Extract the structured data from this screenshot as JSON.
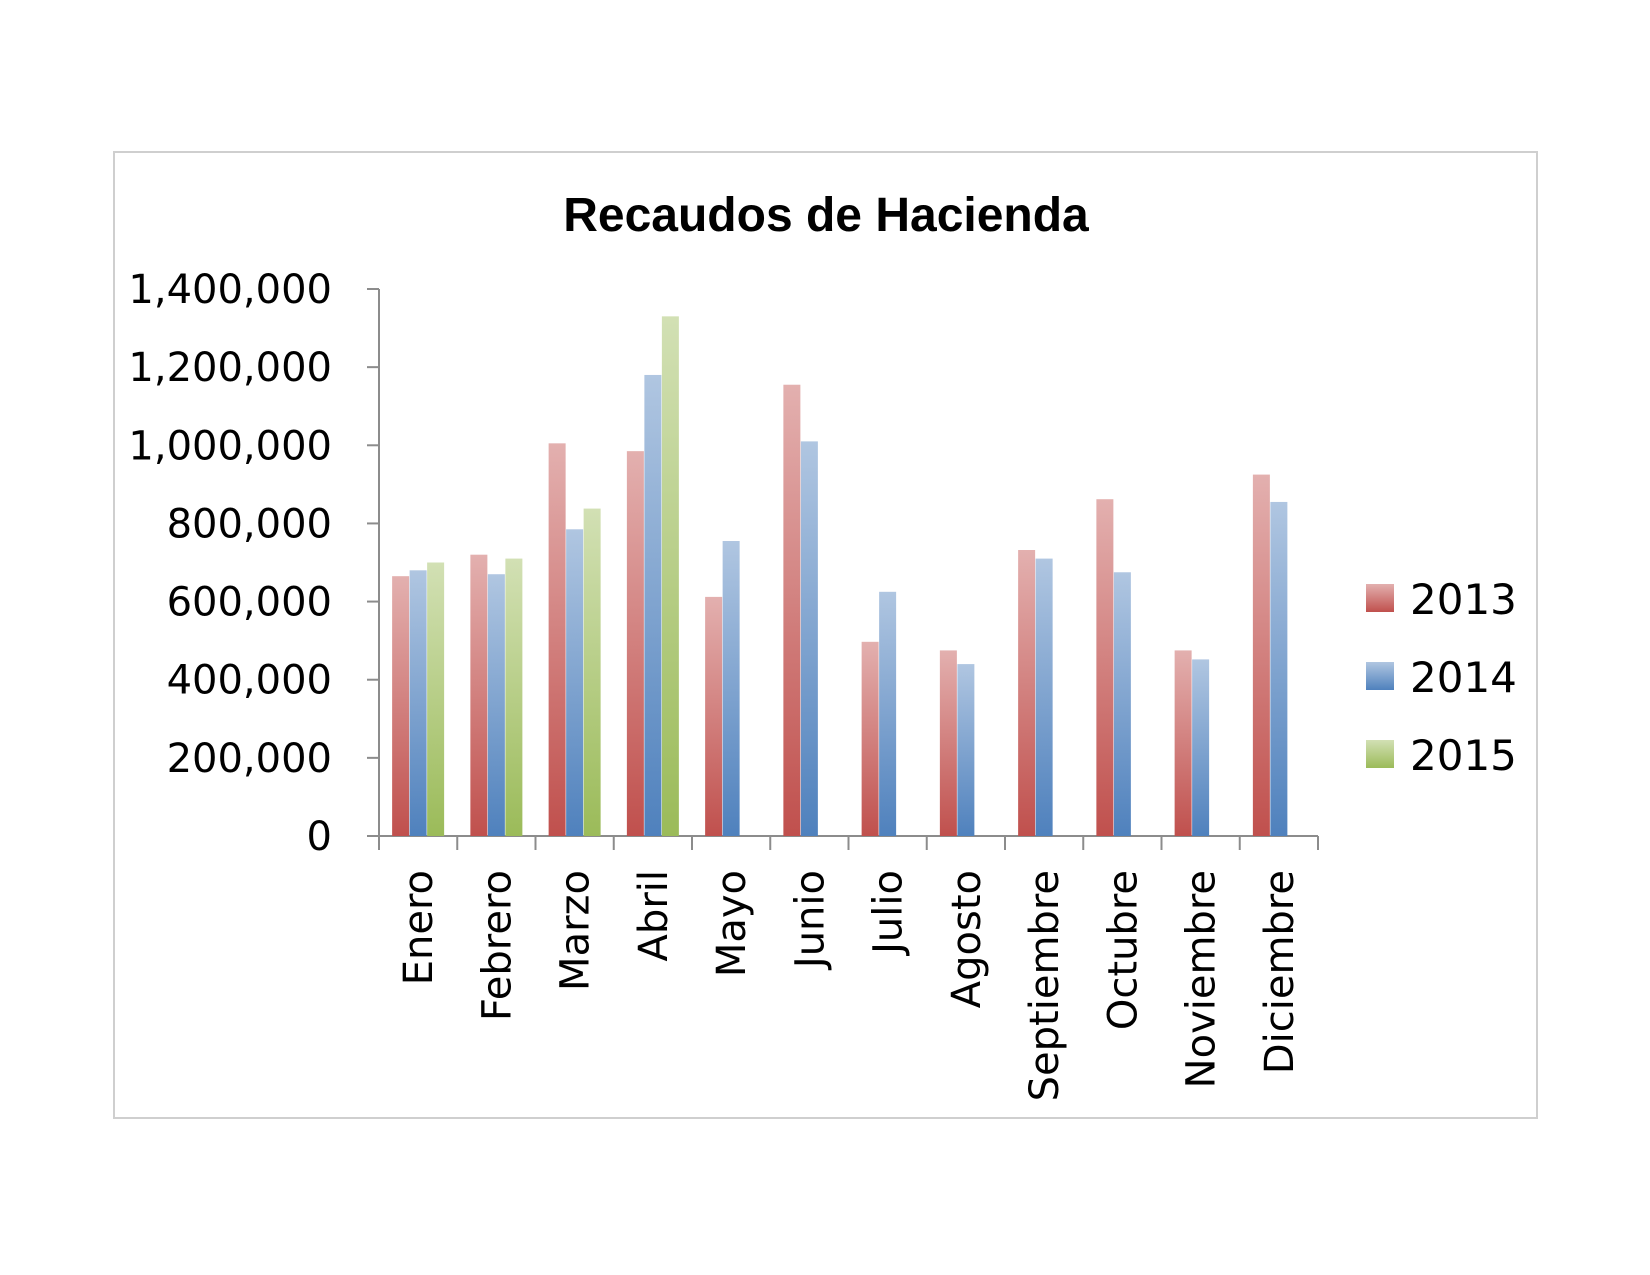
{
  "chart_data": {
    "type": "bar",
    "title": "Recaudos de Hacienda",
    "categories": [
      "Enero",
      "Febrero",
      "Marzo",
      "Abril",
      "Mayo",
      "Junio",
      "Julio",
      "Agosto",
      "Septiembre",
      "Octubre",
      "Noviembre",
      "Diciembre"
    ],
    "series": [
      {
        "name": "2013",
        "color": "#c0504d",
        "values": [
          665000,
          720000,
          1005000,
          985000,
          612000,
          1155000,
          497000,
          475000,
          732000,
          862000,
          475000,
          925000
        ]
      },
      {
        "name": "2014",
        "color": "#4f81bd",
        "values": [
          680000,
          670000,
          785000,
          1180000,
          755000,
          1010000,
          625000,
          440000,
          710000,
          675000,
          452000,
          855000
        ]
      },
      {
        "name": "2015",
        "color": "#9bbb59",
        "values": [
          700000,
          710000,
          838000,
          1330000,
          null,
          null,
          null,
          null,
          null,
          null,
          null,
          null
        ]
      }
    ],
    "ylim": [
      0,
      1400000
    ],
    "yticks": [
      "0",
      "200,000",
      "400,000",
      "600,000",
      "800,000",
      "1,000,000",
      "1,200,000",
      "1,400,000"
    ],
    "ytick_values": [
      0,
      200000,
      400000,
      600000,
      800000,
      1000000,
      1200000,
      1400000
    ],
    "xlabel": "",
    "ylabel": "",
    "grid": false,
    "legend_position": "right"
  }
}
